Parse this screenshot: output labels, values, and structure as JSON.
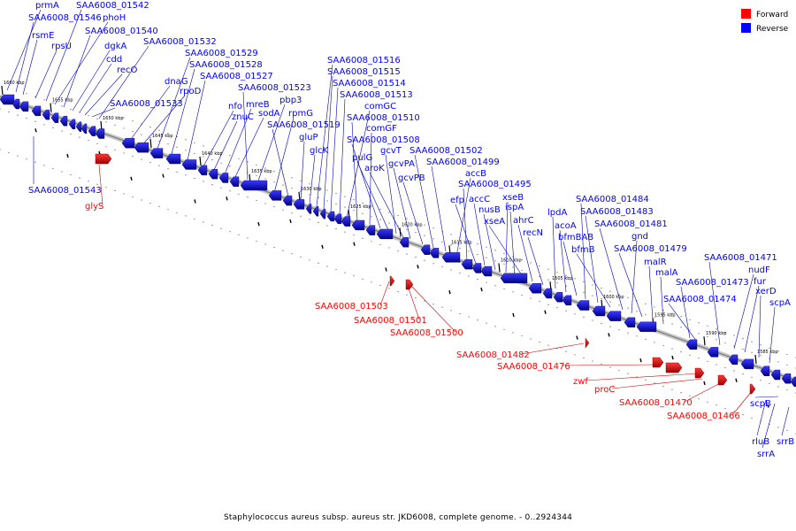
{
  "caption": "Staphylococcus aureus subsp. aureus str. JKD6008, complete genome. - 0..2924344",
  "legend": [
    {
      "label": "Forward",
      "color": "#ff0000"
    },
    {
      "label": "Reverse",
      "color": "#0000ff"
    }
  ],
  "colors": {
    "forward": "#ff0000",
    "reverse": "#0000ff",
    "backbone": "#909090"
  },
  "ticks": [
    "1660 kbp",
    "1655 kbp",
    "1650 kbp",
    "1645 kbp",
    "1640 kbp",
    "1635 kbp",
    "1630 kbp",
    "1625 kbp",
    "1620 kbp",
    "1615 kbp",
    "1610 kbp",
    "1605 kbp",
    "1600 kbp",
    "1595 kbp",
    "1590 kbp",
    "1585 kbp"
  ],
  "reverse_labels": [
    "prmA",
    "SAA6008_01546",
    "rsmE",
    "rpsU",
    "SAA6008_01542",
    "phoH",
    "SAA6008_01540",
    "dgkA",
    "cdd",
    "recO",
    "SAA6008_01533",
    "SAA6008_01532",
    "dnaG",
    "rpoD",
    "SAA6008_01529",
    "SAA6008_01528",
    "SAA6008_01527",
    "nfo",
    "znuC",
    "mreB",
    "sodA",
    "SAA6008_01523",
    "pbp3",
    "rpmG",
    "SAA6008_01519",
    "gluP",
    "glcK",
    "SAA6008_01516",
    "SAA6008_01515",
    "SAA6008_01514",
    "SAA6008_01513",
    "comGC",
    "SAA6008_01510",
    "comGF",
    "SAA6008_01508",
    "pulG",
    "gcvT",
    "aroK",
    "gcvPA",
    "gcvPB",
    "SAA6008_01502",
    "SAA6008_01499",
    "accB",
    "SAA6008_01495",
    "efp",
    "accC",
    "nusB",
    "xseB",
    "ispA",
    "xseA",
    "ahrC",
    "recN",
    "lpdA",
    "acoA",
    "bfmBAB",
    "SAA6008_01484",
    "SAA6008_01483",
    "bfmB",
    "SAA6008_01481",
    "gnd",
    "SAA6008_01479",
    "malR",
    "malA",
    "SAA6008_01473",
    "SAA6008_01471",
    "nudF",
    "fur",
    "SAA6008_01474",
    "xerD",
    "scpA",
    "SAA6008_01543",
    "scpB",
    "rluB",
    "srrA",
    "srrB"
  ],
  "forward_labels": [
    "glyS",
    "SAA6008_01503",
    "SAA6008_01501",
    "SAA6008_01500",
    "SAA6008_01482",
    "SAA6008_01476",
    "zwf",
    "proC",
    "SAA6008_01470",
    "SAA6008_01466"
  ]
}
